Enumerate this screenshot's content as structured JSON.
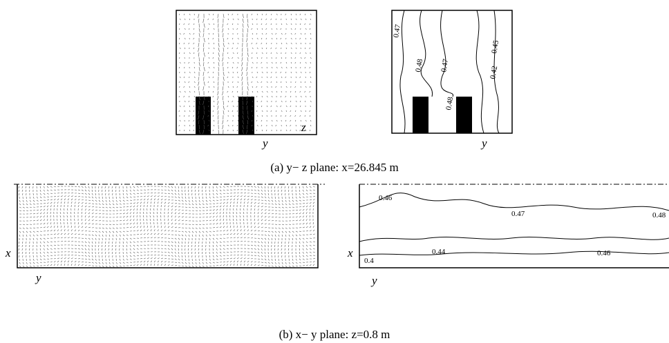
{
  "panel_a": {
    "caption": "(a)  y− z  plane:  x=26.845 m",
    "vector_plot": {
      "y_label": "y",
      "z_label": "z"
    },
    "contour_plot": {
      "y_label": "y",
      "contour_labels": [
        "0.47",
        "0.48",
        "0.47",
        "0.45",
        "0.42",
        "0.48"
      ]
    }
  },
  "panel_b": {
    "caption": "(b)  x− y  plane:  z=0.8 m",
    "vector_plot": {
      "x_label": "x",
      "y_label": "y"
    },
    "contour_plot": {
      "x_label": "x",
      "y_label": "y",
      "contour_labels": [
        "0.46",
        "0.47",
        "0.48",
        "0.44",
        "0.46",
        "0.4"
      ]
    }
  }
}
